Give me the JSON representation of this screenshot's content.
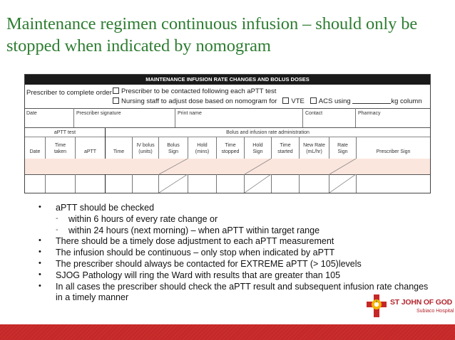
{
  "slide": {
    "title": "Maintenance regimen continuous infusion – should only be stopped when indicated by nomogram"
  },
  "form": {
    "header": "MAINTENANCE INFUSION RATE CHANGES AND BOLUS DOSES",
    "instruction_label": "Prescriber to complete order",
    "option_1": "Prescriber to be contacted following each aPTT test",
    "option_2_prefix": "Nursing staff to adjust dose based on nomogram for",
    "option_vte": "VTE",
    "option_acs": "ACS using",
    "option_suffix": "kg column",
    "top_row": {
      "date": "Date",
      "prescriber_signature": "Prescriber signature",
      "print_name": "Print name",
      "contact": "Contact",
      "pharmacy": "Pharmacy"
    },
    "group_headers": {
      "aptt_test": "aPTT test",
      "bolus_admin": "Bolus and infusion rate administration"
    },
    "columns": {
      "date": "Date",
      "time_taken_1": "Time",
      "time_taken_2": "taken",
      "aptt": "aPTT",
      "time": "Time",
      "iv_bolus_1": "IV bolus",
      "iv_bolus_2": "(units)",
      "bolus_sign_1": "Bolus",
      "bolus_sign_2": "Sign",
      "hold_mins_1": "Hold",
      "hold_mins_2": "(mins)",
      "time_stopped_1": "Time",
      "time_stopped_2": "stopped",
      "hold_sign_1": "Hold",
      "hold_sign_2": "Sign",
      "time_started_1": "Time",
      "time_started_2": "started",
      "new_rate_1": "New Rate",
      "new_rate_2": "(mL/hr)",
      "rate_sign_1": "Rate",
      "rate_sign_2": "Sign",
      "prescriber_sign": "Prescriber Sign"
    }
  },
  "bullets": {
    "b1": "aPTT should be checked",
    "b1_sub1": "within 6 hours of every rate change or",
    "b1_sub2": "within 24 hours (next morning) – when aPTT within target range",
    "b2": "There should be a timely dose adjustment to each aPTT measurement",
    "b3": "The infusion should be continuous – only stop when indicated by aPTT",
    "b4": "The prescriber should always be contacted for EXTREME aPTT (> 105)levels",
    "b5": "SJOG Pathology will ring the Ward with results that are greater than 105",
    "b6": "In all cases the prescriber should check the aPTT result and subsequent infusion rate changes in a timely manner"
  },
  "logo": {
    "name": "ST JOHN OF GOD",
    "sub": "Subiaco Hospital"
  },
  "colors": {
    "title": "#2e7d32",
    "brand_red": "#c62828",
    "row_highlight": "#fbe6de"
  }
}
